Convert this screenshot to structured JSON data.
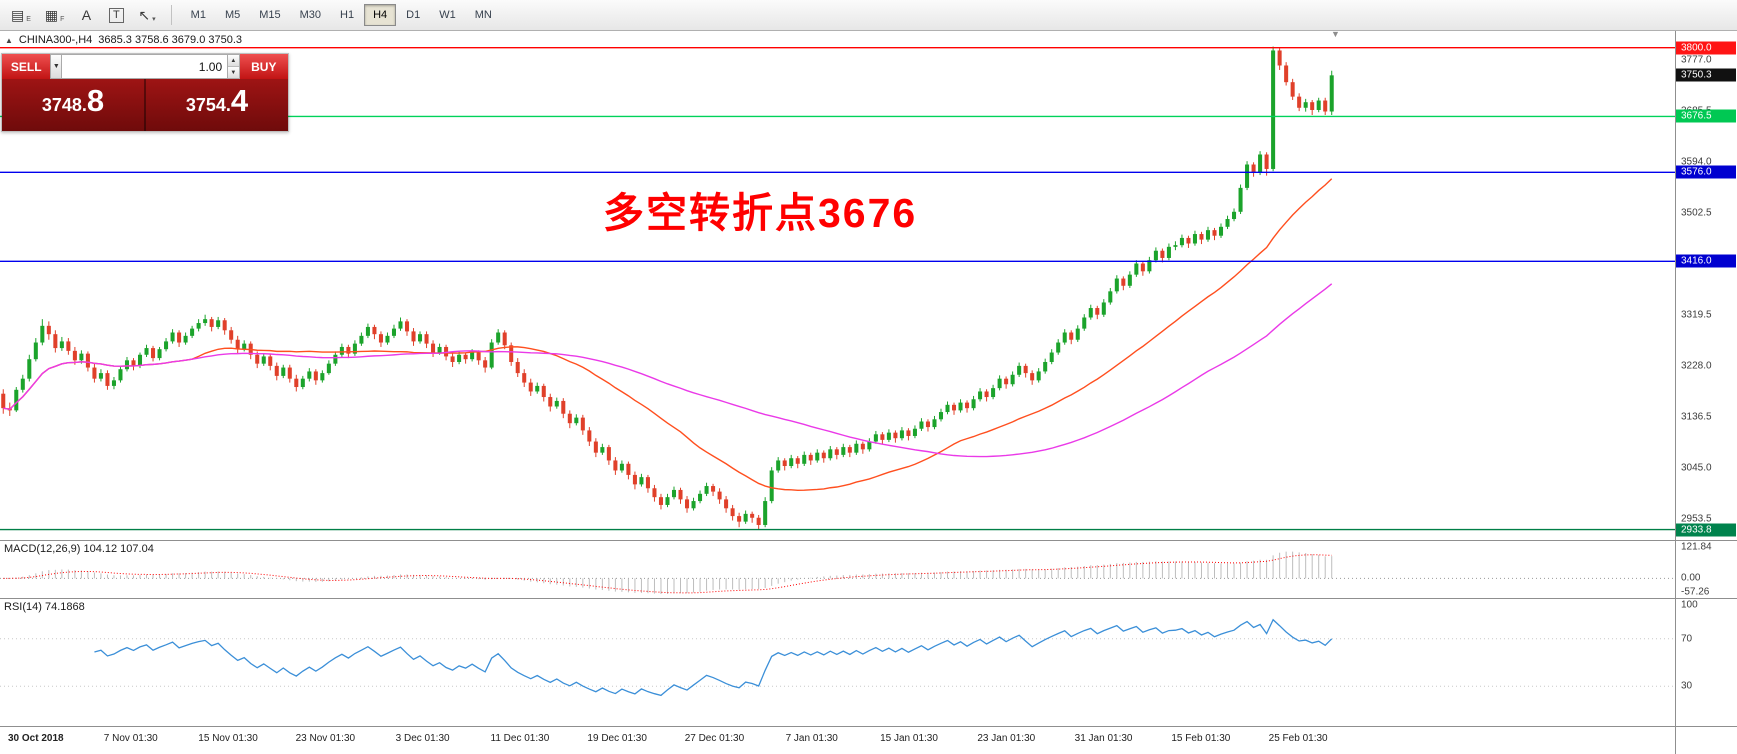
{
  "toolbar": {
    "tools": [
      {
        "name": "chart-objects-icon",
        "glyph": "▤",
        "sub": "E",
        "boxed": false
      },
      {
        "name": "grid-tool-icon",
        "glyph": "▦",
        "sub": "F",
        "boxed": false
      },
      {
        "name": "text-label-tool-icon",
        "glyph": "A",
        "sub": "",
        "boxed": false
      },
      {
        "name": "text-box-tool-icon",
        "glyph": "T",
        "sub": "",
        "boxed": true
      },
      {
        "name": "drawing-tools-icon",
        "glyph": "↖",
        "sub": "▾",
        "boxed": false
      }
    ],
    "timeframes": [
      "M1",
      "M5",
      "M15",
      "M30",
      "H1",
      "H4",
      "D1",
      "W1",
      "MN"
    ],
    "active_timeframe": "H4"
  },
  "chart_header": {
    "collapse_icon": "▲",
    "title": "CHINA300-,H4",
    "ohlc_text": "3685.3 3758.6 3679.0 3750.3"
  },
  "trade_panel": {
    "sell_label": "SELL",
    "buy_label": "BUY",
    "volume_value": "1.00",
    "dropdown_glyph": "▼",
    "spinner_up_glyph": "▲",
    "spinner_down_glyph": "▼",
    "sell_price_int": "3748.",
    "sell_price_frac": "8",
    "buy_price_int": "3754.",
    "buy_price_frac": "4"
  },
  "annotation": {
    "text": "多空转折点3676",
    "color": "#ff0000"
  },
  "chart_ui": {
    "shift_marker_glyph": "▼"
  },
  "chart_data": {
    "type": "candlestick",
    "symbol": "CHINA300-",
    "timeframe": "H4",
    "current_ohlc": {
      "open": 3685.3,
      "high": 3758.6,
      "low": 3679.0,
      "close": 3750.3
    },
    "ylim": [
      2915,
      3830
    ],
    "price_axis_labels": [
      3777.0,
      3685.5,
      3594.0,
      3502.5,
      3319.5,
      3228.0,
      3136.5,
      3045.0,
      2953.5
    ],
    "levels": [
      {
        "price": 3800.0,
        "label": "3800.0",
        "line_color": "#ff0000",
        "badge_bg": "#ff1414",
        "draw_line": true
      },
      {
        "price": 3750.3,
        "label": "3750.3",
        "line_color": null,
        "badge_bg": "#111111",
        "draw_line": false
      },
      {
        "price": 3676.5,
        "label": "3676.5",
        "line_color": "#00d25a",
        "badge_bg": "#00c853",
        "draw_line": true
      },
      {
        "price": 3576.0,
        "label": "3576.0",
        "line_color": "#0000ee",
        "badge_bg": "#0000d0",
        "draw_line": true
      },
      {
        "price": 3416.0,
        "label": "3416.0",
        "line_color": "#0000ee",
        "badge_bg": "#0000d0",
        "draw_line": true
      },
      {
        "price": 2933.8,
        "label": "2933.8",
        "line_color": "#007f46",
        "badge_bg": "#00834d",
        "draw_line": true
      }
    ],
    "colors": {
      "up": "#1ba32b",
      "down": "#e0402a",
      "ma_fast": "#ff4f1f",
      "ma_slow": "#ea3ae8",
      "macd_hist": "#bdbdbd",
      "macd_signal": "#ff0000",
      "rsi": "#3b8fd8"
    },
    "ma_fast_period": 30,
    "ma_slow_period": 68,
    "time_labels": [
      "30 Oct 2018",
      "7 Nov 01:30",
      "15 Nov 01:30",
      "23 Nov 01:30",
      "3 Dec 01:30",
      "11 Dec 01:30",
      "19 Dec 01:30",
      "27 Dec 01:30",
      "7 Jan 01:30",
      "15 Jan 01:30",
      "23 Jan 01:30",
      "31 Jan 01:30",
      "15 Feb 01:30",
      "25 Feb 01:30"
    ],
    "macd": {
      "label": "MACD(12,26,9) 104.12 107.04",
      "fast": 12,
      "slow": 26,
      "signal": 9,
      "value": 104.12,
      "signal_value": 107.04,
      "axis": [
        {
          "label": "121.84",
          "value": 121.84
        },
        {
          "label": "0.00",
          "value": 0
        },
        {
          "label": "-57.26",
          "value": -57.26
        }
      ]
    },
    "rsi": {
      "label": "RSI(14) 74.1868",
      "period": 14,
      "value": 74.1868,
      "axis": [
        {
          "label": "100",
          "value": 100
        },
        {
          "label": "70",
          "value": 70
        },
        {
          "label": "30",
          "value": 30
        }
      ],
      "level_lines": [
        70,
        30
      ]
    },
    "candles": [
      [
        3178,
        3186,
        3142,
        3152
      ],
      [
        3152,
        3162,
        3138,
        3148
      ],
      [
        3148,
        3190,
        3145,
        3185
      ],
      [
        3185,
        3212,
        3180,
        3205
      ],
      [
        3205,
        3248,
        3200,
        3240
      ],
      [
        3240,
        3278,
        3236,
        3270
      ],
      [
        3270,
        3312,
        3265,
        3300
      ],
      [
        3300,
        3308,
        3275,
        3285
      ],
      [
        3285,
        3292,
        3252,
        3260
      ],
      [
        3260,
        3280,
        3255,
        3272
      ],
      [
        3272,
        3278,
        3248,
        3255
      ],
      [
        3255,
        3262,
        3230,
        3238
      ],
      [
        3238,
        3256,
        3232,
        3250
      ],
      [
        3250,
        3254,
        3218,
        3225
      ],
      [
        3225,
        3232,
        3198,
        3205
      ],
      [
        3205,
        3222,
        3200,
        3215
      ],
      [
        3215,
        3220,
        3185,
        3192
      ],
      [
        3192,
        3208,
        3186,
        3202
      ],
      [
        3202,
        3228,
        3198,
        3222
      ],
      [
        3222,
        3244,
        3218,
        3238
      ],
      [
        3238,
        3242,
        3220,
        3228
      ],
      [
        3228,
        3252,
        3224,
        3248
      ],
      [
        3248,
        3266,
        3244,
        3260
      ],
      [
        3260,
        3264,
        3236,
        3242
      ],
      [
        3242,
        3262,
        3238,
        3258
      ],
      [
        3258,
        3278,
        3254,
        3272
      ],
      [
        3272,
        3294,
        3268,
        3288
      ],
      [
        3288,
        3292,
        3262,
        3270
      ],
      [
        3270,
        3288,
        3266,
        3282
      ],
      [
        3282,
        3300,
        3278,
        3295
      ],
      [
        3295,
        3312,
        3290,
        3305
      ],
      [
        3305,
        3320,
        3300,
        3312
      ],
      [
        3312,
        3316,
        3290,
        3298
      ],
      [
        3298,
        3316,
        3294,
        3310
      ],
      [
        3310,
        3314,
        3284,
        3292
      ],
      [
        3292,
        3298,
        3268,
        3275
      ],
      [
        3275,
        3282,
        3250,
        3258
      ],
      [
        3258,
        3274,
        3254,
        3268
      ],
      [
        3268,
        3272,
        3240,
        3248
      ],
      [
        3248,
        3254,
        3224,
        3232
      ],
      [
        3232,
        3250,
        3228,
        3245
      ],
      [
        3245,
        3250,
        3220,
        3228
      ],
      [
        3228,
        3234,
        3202,
        3210
      ],
      [
        3210,
        3230,
        3206,
        3225
      ],
      [
        3225,
        3230,
        3198,
        3205
      ],
      [
        3205,
        3212,
        3182,
        3190
      ],
      [
        3190,
        3210,
        3186,
        3205
      ],
      [
        3205,
        3224,
        3200,
        3218
      ],
      [
        3218,
        3222,
        3194,
        3202
      ],
      [
        3202,
        3220,
        3198,
        3215
      ],
      [
        3215,
        3238,
        3212,
        3232
      ],
      [
        3232,
        3254,
        3228,
        3248
      ],
      [
        3248,
        3268,
        3244,
        3262
      ],
      [
        3262,
        3266,
        3242,
        3250
      ],
      [
        3250,
        3274,
        3246,
        3268
      ],
      [
        3268,
        3288,
        3264,
        3282
      ],
      [
        3282,
        3304,
        3278,
        3298
      ],
      [
        3298,
        3302,
        3276,
        3285
      ],
      [
        3285,
        3290,
        3262,
        3270
      ],
      [
        3270,
        3288,
        3266,
        3282
      ],
      [
        3282,
        3302,
        3278,
        3295
      ],
      [
        3295,
        3315,
        3291,
        3308
      ],
      [
        3308,
        3312,
        3282,
        3290
      ],
      [
        3290,
        3296,
        3264,
        3272
      ],
      [
        3272,
        3290,
        3268,
        3285
      ],
      [
        3285,
        3290,
        3260,
        3268
      ],
      [
        3268,
        3274,
        3244,
        3252
      ],
      [
        3252,
        3268,
        3248,
        3262
      ],
      [
        3262,
        3266,
        3238,
        3245
      ],
      [
        3245,
        3252,
        3226,
        3235
      ],
      [
        3235,
        3254,
        3231,
        3248
      ],
      [
        3248,
        3252,
        3232,
        3240
      ],
      [
        3240,
        3258,
        3236,
        3252
      ],
      [
        3252,
        3256,
        3230,
        3238
      ],
      [
        3238,
        3244,
        3216,
        3225
      ],
      [
        3225,
        3276,
        3222,
        3270
      ],
      [
        3270,
        3294,
        3266,
        3288
      ],
      [
        3288,
        3292,
        3258,
        3265
      ],
      [
        3265,
        3270,
        3228,
        3235
      ],
      [
        3235,
        3242,
        3208,
        3215
      ],
      [
        3215,
        3222,
        3190,
        3198
      ],
      [
        3198,
        3205,
        3174,
        3182
      ],
      [
        3182,
        3198,
        3178,
        3192
      ],
      [
        3192,
        3196,
        3164,
        3172
      ],
      [
        3172,
        3178,
        3146,
        3155
      ],
      [
        3155,
        3171,
        3151,
        3165
      ],
      [
        3165,
        3170,
        3134,
        3142
      ],
      [
        3142,
        3148,
        3116,
        3125
      ],
      [
        3125,
        3141,
        3121,
        3135
      ],
      [
        3135,
        3140,
        3104,
        3112
      ],
      [
        3112,
        3118,
        3084,
        3092
      ],
      [
        3092,
        3098,
        3064,
        3072
      ],
      [
        3072,
        3088,
        3068,
        3082
      ],
      [
        3082,
        3086,
        3050,
        3058
      ],
      [
        3058,
        3064,
        3032,
        3040
      ],
      [
        3040,
        3058,
        3036,
        3052
      ],
      [
        3052,
        3056,
        3024,
        3032
      ],
      [
        3032,
        3038,
        3006,
        3015
      ],
      [
        3015,
        3034,
        3011,
        3028
      ],
      [
        3028,
        3032,
        3000,
        3008
      ],
      [
        3008,
        3014,
        2984,
        2992
      ],
      [
        2992,
        2998,
        2970,
        2978
      ],
      [
        2978,
        2998,
        2974,
        2992
      ],
      [
        2992,
        3011,
        2988,
        3005
      ],
      [
        3005,
        3009,
        2980,
        2988
      ],
      [
        2988,
        2994,
        2964,
        2972
      ],
      [
        2972,
        2991,
        2968,
        2985
      ],
      [
        2985,
        3004,
        2981,
        2998
      ],
      [
        2998,
        3018,
        2994,
        3012
      ],
      [
        3012,
        3016,
        2994,
        3002
      ],
      [
        3002,
        3008,
        2980,
        2988
      ],
      [
        2988,
        2994,
        2964,
        2972
      ],
      [
        2972,
        2978,
        2950,
        2958
      ],
      [
        2958,
        2964,
        2938,
        2948
      ],
      [
        2948,
        2968,
        2944,
        2962
      ],
      [
        2962,
        2966,
        2946,
        2955
      ],
      [
        2955,
        2960,
        2933,
        2942
      ],
      [
        2942,
        2992,
        2938,
        2985
      ],
      [
        2985,
        3046,
        2981,
        3040
      ],
      [
        3040,
        3064,
        3036,
        3058
      ],
      [
        3058,
        3062,
        3040,
        3048
      ],
      [
        3048,
        3068,
        3044,
        3062
      ],
      [
        3062,
        3066,
        3044,
        3052
      ],
      [
        3052,
        3074,
        3048,
        3068
      ],
      [
        3068,
        3072,
        3050,
        3058
      ],
      [
        3058,
        3078,
        3054,
        3072
      ],
      [
        3072,
        3076,
        3054,
        3062
      ],
      [
        3062,
        3084,
        3058,
        3078
      ],
      [
        3078,
        3082,
        3060,
        3068
      ],
      [
        3068,
        3088,
        3064,
        3082
      ],
      [
        3082,
        3086,
        3064,
        3072
      ],
      [
        3072,
        3094,
        3068,
        3088
      ],
      [
        3088,
        3092,
        3070,
        3078
      ],
      [
        3078,
        3098,
        3074,
        3092
      ],
      [
        3092,
        3111,
        3088,
        3105
      ],
      [
        3105,
        3109,
        3087,
        3095
      ],
      [
        3095,
        3114,
        3091,
        3108
      ],
      [
        3108,
        3112,
        3090,
        3098
      ],
      [
        3098,
        3118,
        3094,
        3112
      ],
      [
        3112,
        3116,
        3094,
        3102
      ],
      [
        3102,
        3121,
        3098,
        3115
      ],
      [
        3115,
        3134,
        3111,
        3128
      ],
      [
        3128,
        3132,
        3110,
        3118
      ],
      [
        3118,
        3138,
        3114,
        3132
      ],
      [
        3132,
        3151,
        3128,
        3145
      ],
      [
        3145,
        3164,
        3141,
        3158
      ],
      [
        3158,
        3162,
        3140,
        3148
      ],
      [
        3148,
        3168,
        3144,
        3162
      ],
      [
        3162,
        3166,
        3144,
        3152
      ],
      [
        3152,
        3174,
        3148,
        3168
      ],
      [
        3168,
        3188,
        3164,
        3182
      ],
      [
        3182,
        3186,
        3164,
        3172
      ],
      [
        3172,
        3194,
        3168,
        3188
      ],
      [
        3188,
        3211,
        3184,
        3205
      ],
      [
        3205,
        3209,
        3187,
        3195
      ],
      [
        3195,
        3218,
        3191,
        3212
      ],
      [
        3212,
        3234,
        3208,
        3228
      ],
      [
        3228,
        3232,
        3207,
        3215
      ],
      [
        3215,
        3220,
        3194,
        3202
      ],
      [
        3202,
        3224,
        3198,
        3218
      ],
      [
        3218,
        3241,
        3214,
        3235
      ],
      [
        3235,
        3258,
        3231,
        3252
      ],
      [
        3252,
        3276,
        3248,
        3270
      ],
      [
        3270,
        3294,
        3266,
        3288
      ],
      [
        3288,
        3292,
        3267,
        3275
      ],
      [
        3275,
        3301,
        3271,
        3295
      ],
      [
        3295,
        3321,
        3291,
        3315
      ],
      [
        3315,
        3338,
        3311,
        3332
      ],
      [
        3332,
        3336,
        3312,
        3320
      ],
      [
        3320,
        3348,
        3316,
        3342
      ],
      [
        3342,
        3368,
        3338,
        3362
      ],
      [
        3362,
        3391,
        3358,
        3385
      ],
      [
        3385,
        3389,
        3364,
        3372
      ],
      [
        3372,
        3398,
        3368,
        3392
      ],
      [
        3392,
        3418,
        3388,
        3412
      ],
      [
        3412,
        3416,
        3390,
        3398
      ],
      [
        3398,
        3424,
        3394,
        3418
      ],
      [
        3418,
        3441,
        3414,
        3435
      ],
      [
        3435,
        3439,
        3414,
        3422
      ],
      [
        3422,
        3448,
        3418,
        3442
      ],
      [
        3442,
        3452,
        3436,
        3445
      ],
      [
        3445,
        3464,
        3441,
        3458
      ],
      [
        3458,
        3462,
        3440,
        3448
      ],
      [
        3448,
        3471,
        3444,
        3465
      ],
      [
        3465,
        3469,
        3447,
        3455
      ],
      [
        3455,
        3478,
        3451,
        3472
      ],
      [
        3472,
        3476,
        3454,
        3462
      ],
      [
        3462,
        3484,
        3458,
        3478
      ],
      [
        3478,
        3498,
        3474,
        3492
      ],
      [
        3492,
        3511,
        3488,
        3505
      ],
      [
        3505,
        3554,
        3501,
        3548
      ],
      [
        3548,
        3596,
        3544,
        3590
      ],
      [
        3590,
        3594,
        3568,
        3575
      ],
      [
        3575,
        3614,
        3571,
        3608
      ],
      [
        3608,
        3612,
        3570,
        3582
      ],
      [
        3582,
        3802,
        3578,
        3795
      ],
      [
        3795,
        3799,
        3760,
        3768
      ],
      [
        3768,
        3774,
        3732,
        3738
      ],
      [
        3738,
        3744,
        3706,
        3712
      ],
      [
        3712,
        3718,
        3686,
        3692
      ],
      [
        3692,
        3708,
        3685,
        3702
      ],
      [
        3702,
        3706,
        3679,
        3688
      ],
      [
        3688,
        3710,
        3684,
        3705
      ],
      [
        3705,
        3710,
        3679,
        3685.3
      ],
      [
        3685.3,
        3758.6,
        3679,
        3750.3
      ]
    ]
  }
}
